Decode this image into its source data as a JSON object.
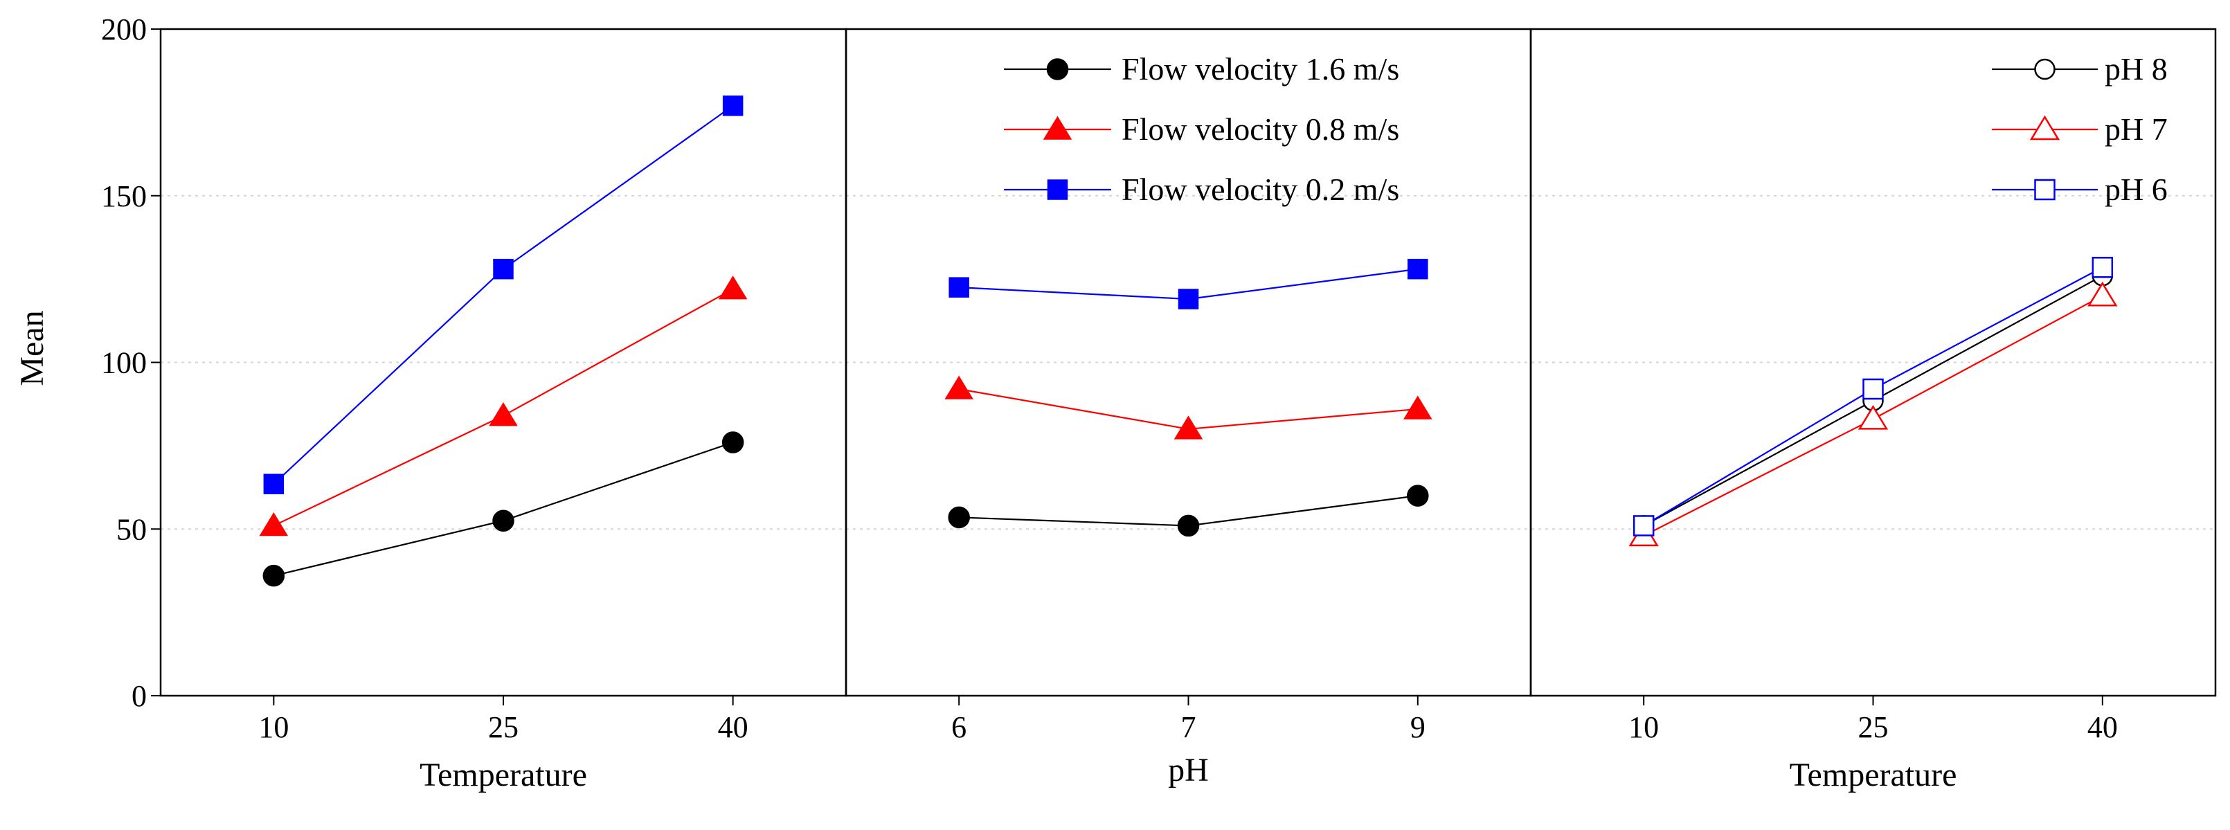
{
  "chart_data": {
    "type": "line",
    "ylabel": "Mean",
    "ylim": [
      0,
      200
    ],
    "yticks": [
      0,
      50,
      100,
      150,
      200
    ],
    "grid": "horizontal dotted",
    "panels": [
      {
        "id": "temp-by-flow",
        "xlabel": "Temperature",
        "categories": [
          "10",
          "25",
          "40"
        ],
        "series": [
          {
            "name": "Flow velocity 1.6 m/s",
            "color": "#000000",
            "marker": "circle-filled",
            "values": [
              36,
              52.5,
              76
            ]
          },
          {
            "name": "Flow velocity 0.8 m/s",
            "color": "#ff0000",
            "marker": "triangle-filled",
            "values": [
              51,
              84,
              122
            ]
          },
          {
            "name": "Flow velocity 0.2 m/s",
            "color": "#0000ff",
            "marker": "square-filled",
            "values": [
              63.5,
              128,
              177
            ]
          }
        ]
      },
      {
        "id": "ph-by-flow",
        "xlabel": "pH",
        "categories": [
          "6",
          "7",
          "9"
        ],
        "legend": "top-right",
        "series": [
          {
            "name": "Flow velocity 1.6 m/s",
            "color": "#000000",
            "marker": "circle-filled",
            "values": [
              53.5,
              51,
              60
            ]
          },
          {
            "name": "Flow velocity 0.8 m/s",
            "color": "#ff0000",
            "marker": "triangle-filled",
            "values": [
              92,
              80,
              86
            ]
          },
          {
            "name": "Flow velocity 0.2 m/s",
            "color": "#0000ff",
            "marker": "square-filled",
            "values": [
              122.5,
              119,
              128
            ]
          }
        ]
      },
      {
        "id": "temp-by-ph",
        "xlabel": "Temperature",
        "categories": [
          "10",
          "25",
          "40"
        ],
        "legend": "top-right",
        "series": [
          {
            "name": "pH 8",
            "color": "#000000",
            "marker": "circle-open",
            "values": [
              51,
              88.5,
              126
            ]
          },
          {
            "name": "pH 7",
            "color": "#ff0000",
            "marker": "triangle-open",
            "values": [
              48,
              83,
              120
            ]
          },
          {
            "name": "pH 6",
            "color": "#0000ff",
            "marker": "square-open",
            "values": [
              51,
              92,
              128.5
            ]
          }
        ]
      }
    ]
  }
}
